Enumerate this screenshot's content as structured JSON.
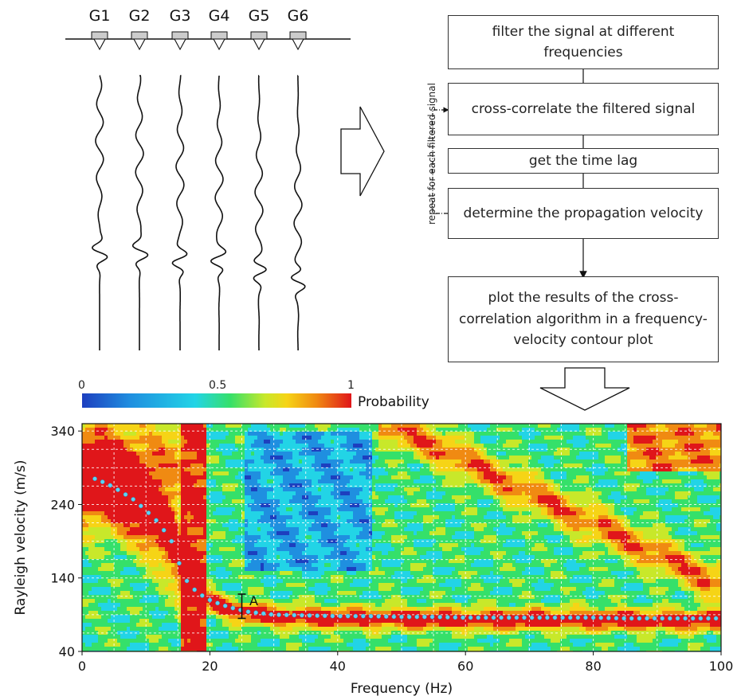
{
  "geophones": [
    "G1",
    "G2",
    "G3",
    "G4",
    "G5",
    "G6"
  ],
  "flowchart": {
    "steps": [
      "filter the signal at different frequencies",
      "cross-correlate the filtered signal",
      "get the time lag",
      "determine the propagation velocity",
      "plot the results of the cross-correlation algorithm in a frequency-velocity contour plot"
    ],
    "loop_label": "repeat for each filtered signal"
  },
  "colorbar": {
    "ticks": [
      "0",
      "0.5",
      "1"
    ],
    "title": "Probability",
    "colors": [
      "#1d3fbf",
      "#1f8fe0",
      "#22d4e6",
      "#35e06a",
      "#c8e82a",
      "#f6d416",
      "#f08a12",
      "#e0161a"
    ]
  },
  "chart_data": {
    "type": "heatmap",
    "xlabel": "Frequency (Hz)",
    "ylabel": "Rayleigh velocity (m/s)",
    "xlim": [
      0,
      100
    ],
    "ylim": [
      40,
      350
    ],
    "x_ticks": [
      "0",
      "20",
      "40",
      "60",
      "80",
      "100"
    ],
    "y_ticks": [
      "40",
      "140",
      "240",
      "340"
    ],
    "grid": true,
    "annotation": "A",
    "dispersion_curve": {
      "x": [
        2,
        4,
        6,
        8,
        10,
        12,
        14,
        15,
        16,
        18,
        20,
        22,
        24,
        26,
        28,
        30,
        35,
        40,
        45,
        50,
        55,
        60,
        65,
        70,
        75,
        80,
        85,
        90,
        95,
        100
      ],
      "y": [
        275,
        268,
        258,
        247,
        232,
        215,
        190,
        165,
        140,
        120,
        110,
        103,
        98,
        94,
        92,
        90,
        89,
        88,
        88,
        87,
        87,
        86,
        86,
        86,
        86,
        86,
        85,
        85,
        85,
        85
      ]
    },
    "error_bar": {
      "x": 25,
      "y_low": 85,
      "y_high": 118
    }
  }
}
